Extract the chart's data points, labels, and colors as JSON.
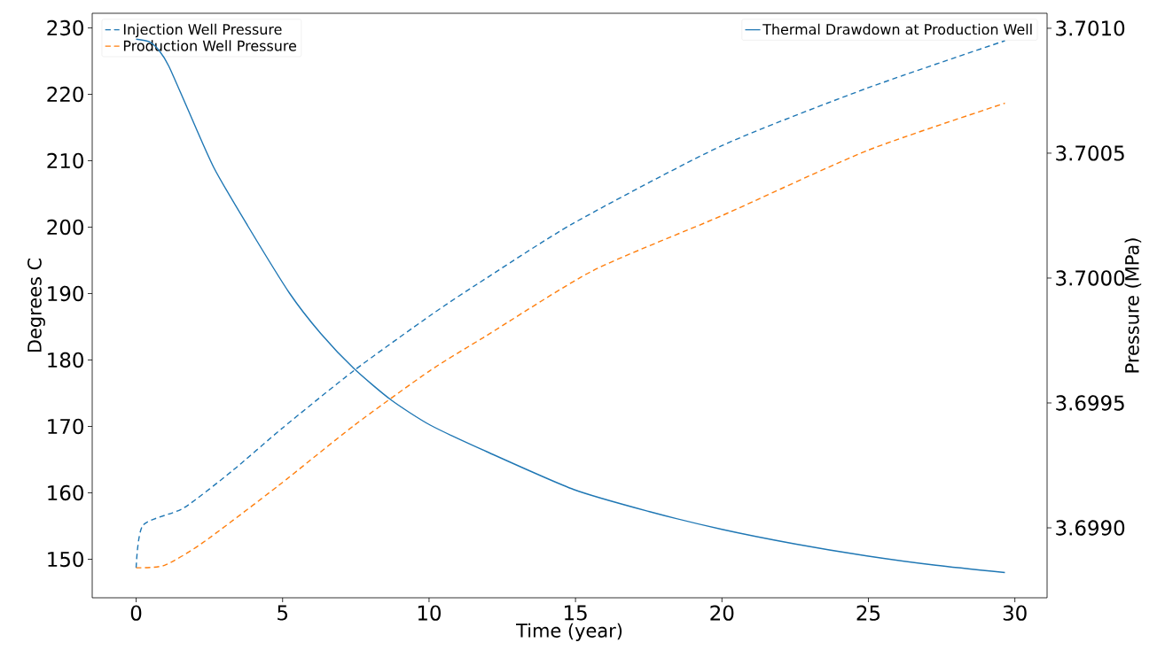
{
  "chart_data": {
    "type": "line",
    "xlabel": "Time (year)",
    "ylabel": "Degrees C",
    "y2label": "Pressure (MPa)",
    "xlim": [
      -1.5,
      31.1
    ],
    "ylim": [
      144.2,
      232.2
    ],
    "y2lim": [
      3.69872,
      3.70106
    ],
    "xticks": [
      0,
      5,
      10,
      15,
      20,
      25,
      30
    ],
    "yticks": [
      150,
      160,
      170,
      180,
      190,
      200,
      210,
      220,
      230
    ],
    "y2ticks": [
      {
        "value": 3.699,
        "label": "3.6990"
      },
      {
        "value": 3.6995,
        "label": "3.6995"
      },
      {
        "value": 3.7,
        "label": "3.7000"
      },
      {
        "value": 3.7005,
        "label": "3.7005"
      },
      {
        "value": 3.701,
        "label": "3.7010"
      }
    ],
    "legend": "top",
    "grid": false,
    "marker": "none",
    "series": [
      {
        "name": "Thermal Drawdown at Production Well",
        "color": "#1f77b4",
        "line_style": "solid",
        "x": [
          0,
          0.45,
          0.8,
          1.12,
          1.75,
          2.66,
          3.81,
          5.23,
          6.3,
          7.44,
          8.7,
          10.04,
          11.97,
          14.94,
          17.5,
          20.0,
          22.5,
          24.95,
          27.3,
          29.66
        ],
        "values": [
          228.3,
          227.9,
          226.5,
          224.2,
          217.9,
          208.9,
          200.2,
          190.1,
          184.0,
          178.7,
          174.0,
          170.2,
          166.2,
          160.5,
          157.2,
          154.5,
          152.3,
          150.5,
          149.1,
          148.0
        ]
      },
      {
        "name": "Injection Well Pressure",
        "color": "#1f77b4",
        "line_style": "dashed",
        "axis": "y2",
        "x": [
          0,
          0.23,
          1.63,
          3.3,
          5.0,
          7.44,
          10.04,
          11.7,
          14.94,
          20.0,
          24.95,
          29.66
        ],
        "values": [
          3.69884,
          3.69901,
          3.69908,
          3.69923,
          3.6994,
          3.69963,
          3.69985,
          3.69998,
          3.70022,
          3.70053,
          3.70076,
          3.70095
        ]
      },
      {
        "name": "Production Well Pressure",
        "color": "#ff7f0e",
        "line_style": "dashed",
        "axis": "y2",
        "x": [
          0,
          0.97,
          2.27,
          4.87,
          7.44,
          10.04,
          11.97,
          15.6,
          20.0,
          24.95,
          29.66
        ],
        "values": [
          3.69884,
          3.69885,
          3.69894,
          3.69917,
          3.69941,
          3.69963,
          3.69977,
          3.70003,
          3.70025,
          3.70051,
          3.7007
        ]
      }
    ]
  }
}
